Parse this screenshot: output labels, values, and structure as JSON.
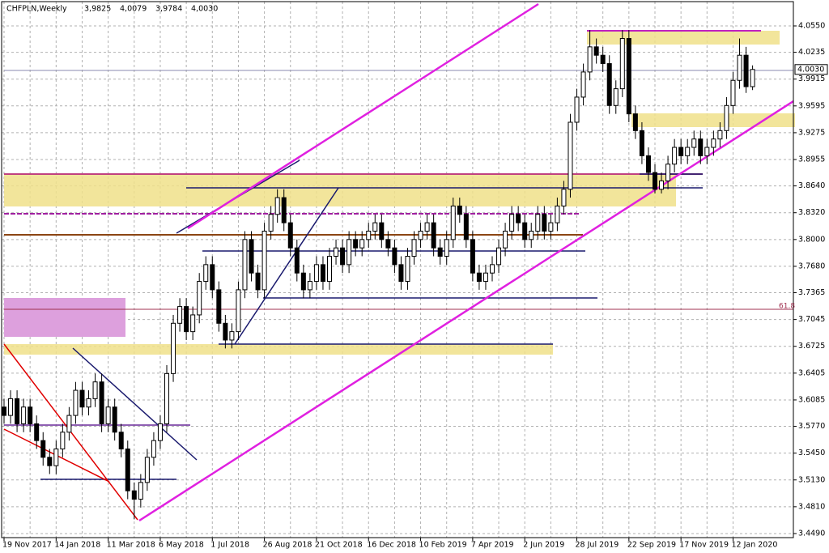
{
  "chart_data": {
    "type": "candlestick",
    "title": "CHFPLN,Weekly",
    "header_values": [
      "3,9825",
      "4,0079",
      "3,9784",
      "4,0030"
    ],
    "current_price": {
      "value": 4.003,
      "label": "4.0030"
    },
    "fibo_label": "61.8",
    "up_color": "#ffffff",
    "down_color": "#000000",
    "grid": true,
    "ylim": [
      3.4451,
      4.0811
    ],
    "yticks": [
      {
        "value": 4.055,
        "label": "4.0550"
      },
      {
        "value": 4.0235,
        "label": "4.0235"
      },
      {
        "value": 3.9915,
        "label": "3.9915"
      },
      {
        "value": 3.9595,
        "label": "3.9595"
      },
      {
        "value": 3.9275,
        "label": "3.9275"
      },
      {
        "value": 3.8955,
        "label": "3.8955"
      },
      {
        "value": 3.864,
        "label": "3.8640"
      },
      {
        "value": 3.832,
        "label": "3.8320"
      },
      {
        "value": 3.8,
        "label": "3.8000"
      },
      {
        "value": 3.768,
        "label": "3.7680"
      },
      {
        "value": 3.7365,
        "label": "3.7365"
      },
      {
        "value": 3.7045,
        "label": "3.7045"
      },
      {
        "value": 3.6725,
        "label": "3.6725"
      },
      {
        "value": 3.6405,
        "label": "3.6405"
      },
      {
        "value": 3.6085,
        "label": "3.6085"
      },
      {
        "value": 3.577,
        "label": "3.5770"
      },
      {
        "value": 3.545,
        "label": "3.5450"
      },
      {
        "value": 3.513,
        "label": "3.5130"
      },
      {
        "value": 3.481,
        "label": "3.4810"
      },
      {
        "value": 3.449,
        "label": "3.4490"
      }
    ],
    "categories": [
      "19 Nov 2017",
      null,
      null,
      null,
      null,
      null,
      null,
      null,
      "14 Jan 2018",
      null,
      null,
      null,
      null,
      null,
      null,
      null,
      "11 Mar 2018",
      null,
      null,
      null,
      null,
      null,
      null,
      null,
      "6 May 2018",
      null,
      null,
      null,
      null,
      null,
      null,
      null,
      "1 Jul 2018",
      null,
      null,
      null,
      null,
      null,
      null,
      null,
      "26 Aug 2018",
      null,
      null,
      null,
      null,
      null,
      null,
      null,
      "21 Oct 2018",
      null,
      null,
      null,
      null,
      null,
      null,
      null,
      "16 Dec 2018",
      null,
      null,
      null,
      null,
      null,
      null,
      null,
      "10 Feb 2019",
      null,
      null,
      null,
      null,
      null,
      null,
      null,
      "7 Apr 2019",
      null,
      null,
      null,
      null,
      null,
      null,
      null,
      "2 Jun 2019",
      null,
      null,
      null,
      null,
      null,
      null,
      null,
      "28 Jul 2019",
      null,
      null,
      null,
      null,
      null,
      null,
      null,
      "22 Sep 2019",
      null,
      null,
      null,
      null,
      null,
      null,
      null,
      "17 Nov 2019",
      null,
      null,
      null,
      null,
      null,
      null,
      null,
      "12 Jan 2020",
      null,
      null,
      null
    ],
    "ohlc": [
      [
        3.6,
        3.61,
        3.58,
        3.59
      ],
      [
        3.59,
        3.62,
        3.58,
        3.61
      ],
      [
        3.61,
        3.62,
        3.57,
        3.58
      ],
      [
        3.58,
        3.61,
        3.57,
        3.6
      ],
      [
        3.6,
        3.61,
        3.57,
        3.58
      ],
      [
        3.58,
        3.59,
        3.55,
        3.56
      ],
      [
        3.56,
        3.57,
        3.53,
        3.54
      ],
      [
        3.54,
        3.55,
        3.52,
        3.53
      ],
      [
        3.53,
        3.56,
        3.52,
        3.55
      ],
      [
        3.55,
        3.58,
        3.54,
        3.57
      ],
      [
        3.57,
        3.6,
        3.56,
        3.59
      ],
      [
        3.59,
        3.63,
        3.58,
        3.62
      ],
      [
        3.62,
        3.63,
        3.59,
        3.6
      ],
      [
        3.6,
        3.62,
        3.59,
        3.61
      ],
      [
        3.61,
        3.64,
        3.6,
        3.63
      ],
      [
        3.63,
        3.64,
        3.57,
        3.58
      ],
      [
        3.58,
        3.61,
        3.57,
        3.6
      ],
      [
        3.6,
        3.61,
        3.56,
        3.57
      ],
      [
        3.57,
        3.58,
        3.54,
        3.55
      ],
      [
        3.55,
        3.56,
        3.49,
        3.5
      ],
      [
        3.5,
        3.51,
        3.466,
        3.49
      ],
      [
        3.49,
        3.52,
        3.48,
        3.51
      ],
      [
        3.51,
        3.55,
        3.5,
        3.54
      ],
      [
        3.54,
        3.57,
        3.53,
        3.56
      ],
      [
        3.56,
        3.59,
        3.55,
        3.58
      ],
      [
        3.58,
        3.65,
        3.57,
        3.64
      ],
      [
        3.64,
        3.71,
        3.63,
        3.7
      ],
      [
        3.7,
        3.73,
        3.69,
        3.72
      ],
      [
        3.72,
        3.73,
        3.68,
        3.69
      ],
      [
        3.69,
        3.72,
        3.68,
        3.71
      ],
      [
        3.71,
        3.76,
        3.7,
        3.75
      ],
      [
        3.75,
        3.78,
        3.74,
        3.77
      ],
      [
        3.77,
        3.78,
        3.73,
        3.74
      ],
      [
        3.74,
        3.75,
        3.69,
        3.7
      ],
      [
        3.7,
        3.71,
        3.67,
        3.68
      ],
      [
        3.68,
        3.7,
        3.67,
        3.69
      ],
      [
        3.69,
        3.75,
        3.68,
        3.74
      ],
      [
        3.74,
        3.81,
        3.73,
        3.8
      ],
      [
        3.8,
        3.81,
        3.75,
        3.76
      ],
      [
        3.76,
        3.77,
        3.73,
        3.74
      ],
      [
        3.74,
        3.82,
        3.73,
        3.81
      ],
      [
        3.81,
        3.84,
        3.8,
        3.83
      ],
      [
        3.83,
        3.86,
        3.82,
        3.85
      ],
      [
        3.85,
        3.86,
        3.81,
        3.82
      ],
      [
        3.82,
        3.83,
        3.78,
        3.79
      ],
      [
        3.79,
        3.8,
        3.75,
        3.76
      ],
      [
        3.76,
        3.77,
        3.73,
        3.74
      ],
      [
        3.74,
        3.76,
        3.73,
        3.75
      ],
      [
        3.75,
        3.78,
        3.74,
        3.77
      ],
      [
        3.77,
        3.78,
        3.74,
        3.75
      ],
      [
        3.75,
        3.79,
        3.74,
        3.78
      ],
      [
        3.78,
        3.8,
        3.77,
        3.79
      ],
      [
        3.79,
        3.8,
        3.76,
        3.77
      ],
      [
        3.77,
        3.81,
        3.76,
        3.8
      ],
      [
        3.8,
        3.81,
        3.78,
        3.79
      ],
      [
        3.79,
        3.81,
        3.78,
        3.8
      ],
      [
        3.8,
        3.82,
        3.79,
        3.81
      ],
      [
        3.81,
        3.83,
        3.8,
        3.82
      ],
      [
        3.82,
        3.83,
        3.79,
        3.8
      ],
      [
        3.8,
        3.81,
        3.78,
        3.79
      ],
      [
        3.79,
        3.8,
        3.76,
        3.77
      ],
      [
        3.77,
        3.78,
        3.74,
        3.75
      ],
      [
        3.75,
        3.79,
        3.74,
        3.78
      ],
      [
        3.78,
        3.81,
        3.77,
        3.8
      ],
      [
        3.8,
        3.82,
        3.79,
        3.81
      ],
      [
        3.81,
        3.83,
        3.8,
        3.82
      ],
      [
        3.82,
        3.83,
        3.78,
        3.79
      ],
      [
        3.79,
        3.8,
        3.77,
        3.78
      ],
      [
        3.78,
        3.81,
        3.77,
        3.8
      ],
      [
        3.8,
        3.85,
        3.79,
        3.84
      ],
      [
        3.84,
        3.85,
        3.82,
        3.83
      ],
      [
        3.83,
        3.84,
        3.79,
        3.8
      ],
      [
        3.8,
        3.81,
        3.75,
        3.76
      ],
      [
        3.76,
        3.77,
        3.74,
        3.75
      ],
      [
        3.75,
        3.77,
        3.74,
        3.76
      ],
      [
        3.76,
        3.78,
        3.75,
        3.77
      ],
      [
        3.77,
        3.8,
        3.76,
        3.79
      ],
      [
        3.79,
        3.82,
        3.78,
        3.81
      ],
      [
        3.81,
        3.84,
        3.8,
        3.83
      ],
      [
        3.83,
        3.84,
        3.81,
        3.82
      ],
      [
        3.82,
        3.83,
        3.79,
        3.8
      ],
      [
        3.8,
        3.82,
        3.79,
        3.81
      ],
      [
        3.81,
        3.84,
        3.8,
        3.83
      ],
      [
        3.83,
        3.84,
        3.8,
        3.81
      ],
      [
        3.81,
        3.83,
        3.8,
        3.82
      ],
      [
        3.82,
        3.85,
        3.81,
        3.84
      ],
      [
        3.84,
        3.87,
        3.83,
        3.86
      ],
      [
        3.86,
        3.95,
        3.85,
        3.94
      ],
      [
        3.94,
        3.98,
        3.93,
        3.97
      ],
      [
        3.97,
        4.01,
        3.96,
        4.0
      ],
      [
        4.0,
        4.05,
        3.99,
        4.03
      ],
      [
        4.03,
        4.04,
        4.01,
        4.02
      ],
      [
        4.02,
        4.03,
        4.0,
        4.01
      ],
      [
        4.01,
        4.02,
        3.95,
        3.96
      ],
      [
        3.96,
        3.99,
        3.95,
        3.98
      ],
      [
        3.98,
        4.05,
        3.97,
        4.04
      ],
      [
        4.04,
        4.05,
        3.94,
        3.95
      ],
      [
        3.95,
        3.96,
        3.92,
        3.93
      ],
      [
        3.93,
        3.94,
        3.89,
        3.9
      ],
      [
        3.9,
        3.91,
        3.87,
        3.88
      ],
      [
        3.88,
        3.89,
        3.855,
        3.86
      ],
      [
        3.86,
        3.88,
        3.855,
        3.87
      ],
      [
        3.87,
        3.9,
        3.86,
        3.89
      ],
      [
        3.89,
        3.92,
        3.88,
        3.91
      ],
      [
        3.91,
        3.92,
        3.89,
        3.9
      ],
      [
        3.9,
        3.92,
        3.89,
        3.91
      ],
      [
        3.91,
        3.93,
        3.9,
        3.92
      ],
      [
        3.92,
        3.93,
        3.89,
        3.9
      ],
      [
        3.9,
        3.92,
        3.89,
        3.91
      ],
      [
        3.91,
        3.93,
        3.9,
        3.92
      ],
      [
        3.92,
        3.94,
        3.91,
        3.93
      ],
      [
        3.93,
        3.97,
        3.92,
        3.96
      ],
      [
        3.96,
        4.0,
        3.95,
        3.99
      ],
      [
        3.99,
        4.04,
        3.98,
        4.02
      ],
      [
        4.02,
        4.03,
        3.975,
        3.9825
      ],
      [
        3.9825,
        4.0079,
        3.9784,
        4.003
      ]
    ]
  }
}
